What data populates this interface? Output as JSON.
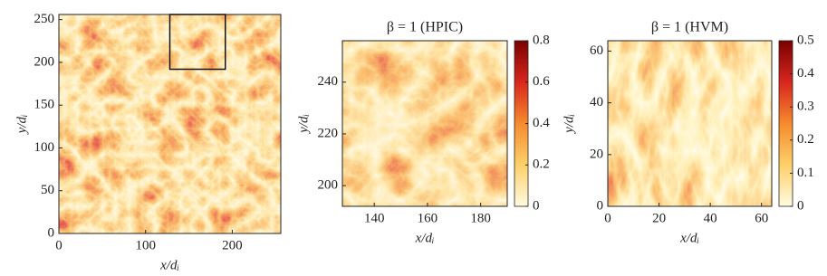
{
  "chart_data": [
    {
      "type": "heatmap",
      "xlabel": "x/dᵢ",
      "ylabel": "y/dᵢ",
      "xlim": [
        0,
        256
      ],
      "ylim": [
        0,
        256
      ],
      "xticks": [
        0,
        100,
        200
      ],
      "yticks": [
        0,
        50,
        100,
        150,
        200,
        250
      ],
      "highlight_box": {
        "xlim": [
          128,
          192
        ],
        "ylim": [
          192,
          256
        ]
      },
      "colors": [
        "#fffbe0",
        "#fdd06a",
        "#f68b2c",
        "#d8261e",
        "#7a0000"
      ]
    },
    {
      "type": "heatmap",
      "title": "β = 1 (HPIC)",
      "xlabel": "x/dᵢ",
      "ylabel": "y/dᵢ",
      "xlim": [
        128,
        190
      ],
      "ylim": [
        192,
        256
      ],
      "xticks": [
        140,
        160,
        180
      ],
      "yticks": [
        200,
        220,
        240
      ],
      "clim": [
        0,
        0.8
      ],
      "cticks": [
        0,
        0.2,
        0.4,
        0.6,
        0.8
      ],
      "colors": [
        "#fffbe0",
        "#fdd06a",
        "#f68b2c",
        "#d8261e",
        "#7a0000"
      ]
    },
    {
      "type": "heatmap",
      "title": "β = 1 (HVM)",
      "xlabel": "x/dᵢ",
      "ylabel": "y/dᵢ",
      "xlim": [
        0,
        64
      ],
      "ylim": [
        0,
        64
      ],
      "xticks": [
        0,
        20,
        40,
        60
      ],
      "yticks": [
        0,
        20,
        40,
        60
      ],
      "clim": [
        0,
        0.5
      ],
      "cticks": [
        0,
        0.1,
        0.2,
        0.3,
        0.4,
        0.5
      ],
      "colors": [
        "#fffbe0",
        "#fdd06a",
        "#f68b2c",
        "#d8261e",
        "#7a0000"
      ]
    }
  ]
}
